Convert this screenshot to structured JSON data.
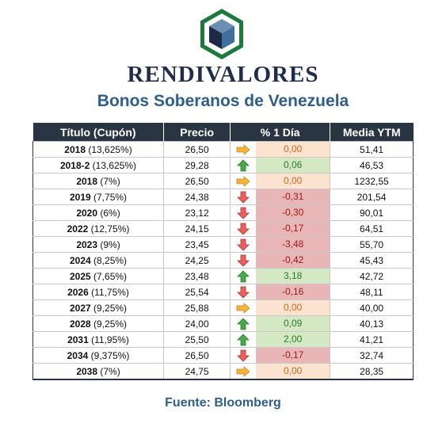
{
  "brand": "RENDIVALORES",
  "subtitle": "Bonos Soberanos de Venezuela",
  "source": "Fuente: Bloomberg",
  "colors": {
    "header_bg": "#2a3543",
    "up": "#4aa84a",
    "down": "#e05050",
    "flat": "#f0b030"
  },
  "table": {
    "headers": [
      "Título (Cupón)",
      "Precio",
      "% 1 Día",
      "Media YTM"
    ],
    "rows": [
      {
        "bond": "2018",
        "coupon": "(13,625%)",
        "price": "26,50",
        "change": "0,00",
        "dir": "flat",
        "ytm": "51,41"
      },
      {
        "bond": "2018-2",
        "coupon": "(13,625%)",
        "price": "29,28",
        "change": "0,06",
        "dir": "up",
        "ytm": "46,53"
      },
      {
        "bond": "2018",
        "coupon": "(7%)",
        "price": "26,50",
        "change": "0,00",
        "dir": "flat",
        "ytm": "1232,55"
      },
      {
        "bond": "2019",
        "coupon": "(7,75%)",
        "price": "24,38",
        "change": "-0,31",
        "dir": "down",
        "ytm": "201,54"
      },
      {
        "bond": "2020",
        "coupon": "(6%)",
        "price": "23,12",
        "change": "-0,30",
        "dir": "down",
        "ytm": "90,01"
      },
      {
        "bond": "2022",
        "coupon": "(12,75%)",
        "price": "24,15",
        "change": "-0,17",
        "dir": "down",
        "ytm": "64,51"
      },
      {
        "bond": "2023",
        "coupon": "(9%)",
        "price": "23,45",
        "change": "-3,48",
        "dir": "down",
        "ytm": "55,70"
      },
      {
        "bond": "2024",
        "coupon": "(8,25%)",
        "price": "24,25",
        "change": "-0,42",
        "dir": "down",
        "ytm": "45,43"
      },
      {
        "bond": "2025",
        "coupon": "(7,65%)",
        "price": "23,48",
        "change": "3,18",
        "dir": "up",
        "ytm": "42,72"
      },
      {
        "bond": "2026",
        "coupon": "(11,75%)",
        "price": "25,54",
        "change": "-0,16",
        "dir": "down",
        "ytm": "48,11"
      },
      {
        "bond": "2027",
        "coupon": "(9,25%)",
        "price": "25,88",
        "change": "0,00",
        "dir": "flat",
        "ytm": "40,00"
      },
      {
        "bond": "2028",
        "coupon": "(9,25%)",
        "price": "24,00",
        "change": "0,09",
        "dir": "up",
        "ytm": "40,13"
      },
      {
        "bond": "2031",
        "coupon": "(11,95%)",
        "price": "25,50",
        "change": "2,00",
        "dir": "up",
        "ytm": "41,21"
      },
      {
        "bond": "2034",
        "coupon": "(9,375%)",
        "price": "26,50",
        "change": "-0,17",
        "dir": "down",
        "ytm": "32,74"
      },
      {
        "bond": "2038",
        "coupon": "(7%)",
        "price": "24,75",
        "change": "0,00",
        "dir": "flat",
        "ytm": "28,35"
      }
    ]
  }
}
